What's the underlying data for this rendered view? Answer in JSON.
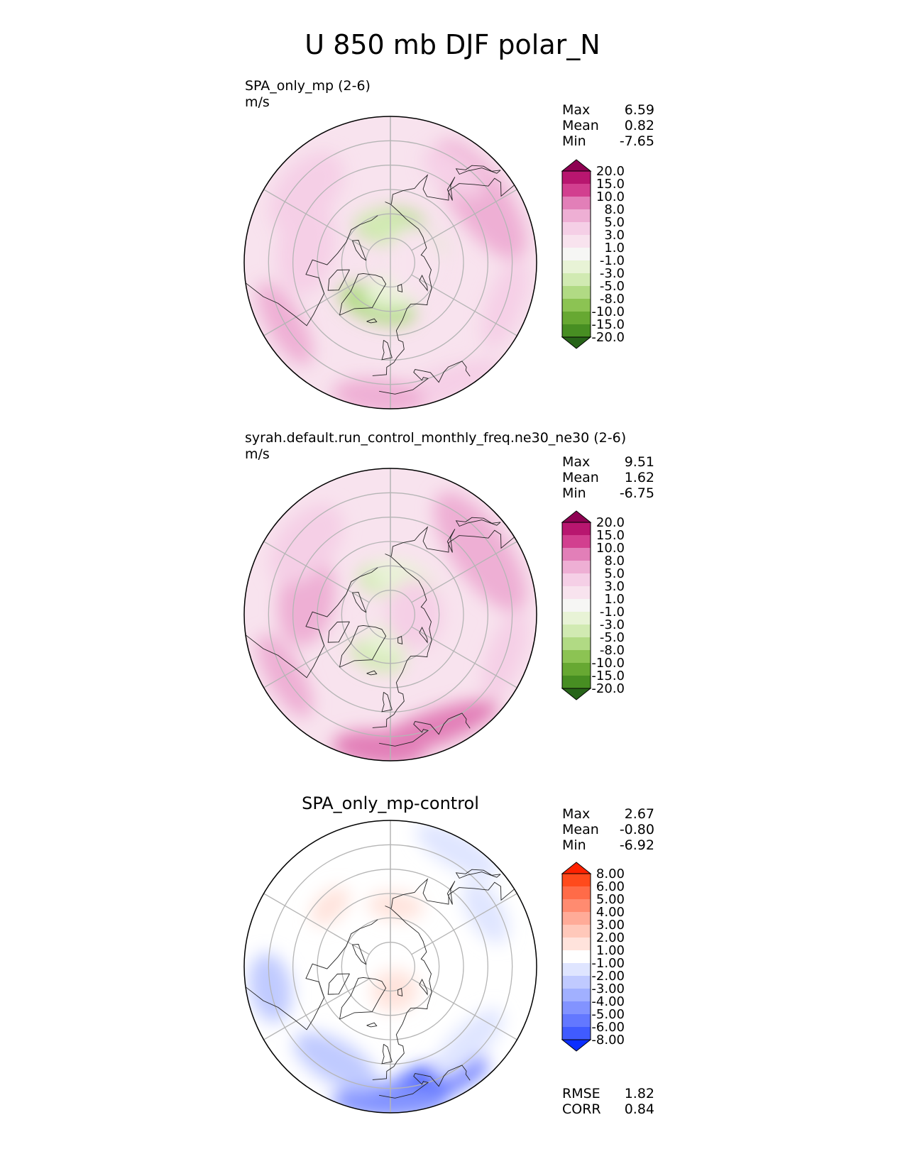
{
  "title": "U 850 mb DJF polar_N",
  "chart_data": [
    {
      "type": "heatmap",
      "title": "SPA_only_mp (2-6)",
      "units": "m/s",
      "stats": [
        [
          "Max",
          "6.59"
        ],
        [
          "Mean",
          "0.82"
        ],
        [
          "Min",
          "-7.65"
        ]
      ],
      "colorbar": {
        "labels": [
          "20.0",
          "15.0",
          "10.0",
          "8.0",
          "5.0",
          "3.0",
          "1.0",
          "-1.0",
          "-3.0",
          "-5.0",
          "-8.0",
          "-10.0",
          "-15.0",
          "-20.0"
        ],
        "colors": [
          "#8e0152",
          "#b8166f",
          "#d23f8f",
          "#e27fb8",
          "#eeafd4",
          "#f5cfe6",
          "#f8e3ee",
          "#f6f6f4",
          "#e8f3d6",
          "#d1eab2",
          "#b1da84",
          "#8cc353",
          "#67a832",
          "#478e22",
          "#276419"
        ]
      },
      "field": [
        {
          "lat": 75,
          "lon": 180,
          "value": -6,
          "sx": 0.15,
          "sy": 0.05
        },
        {
          "lat": 78,
          "lon": 158,
          "value": -4,
          "sx": 0.2,
          "sy": 0.05
        },
        {
          "lat": 72,
          "lon": -18,
          "value": -6,
          "sx": 0.17,
          "sy": 0.05
        },
        {
          "lat": 78,
          "lon": 5,
          "value": -3,
          "sx": 0.12,
          "sy": 0.05
        },
        {
          "lat": 80,
          "lon": 90,
          "value": 2,
          "sx": 0.15,
          "sy": 0.08
        },
        {
          "lat": 45,
          "lon": 125,
          "value": 5,
          "sx": 0.3,
          "sy": 0.08
        },
        {
          "lat": 45,
          "lon": 145,
          "value": 3,
          "sx": 0.15,
          "sy": 0.05
        },
        {
          "lat": 40,
          "lon": -60,
          "value": 6,
          "sx": 0.2,
          "sy": 0.05
        },
        {
          "lat": 35,
          "lon": 20,
          "value": 4,
          "sx": 0.3,
          "sy": 0.05
        },
        {
          "lat": 35,
          "lon": -5,
          "value": 6,
          "sx": 0.2,
          "sy": 0.05
        },
        {
          "lat": 55,
          "lon": -100,
          "value": 4,
          "sx": 0.2,
          "sy": 0.08
        },
        {
          "lat": 45,
          "lon": -130,
          "value": 3,
          "sx": 0.2,
          "sy": 0.08
        },
        {
          "lat": 40,
          "lon": 70,
          "value": 4,
          "sx": 0.2,
          "sy": 0.05
        }
      ],
      "base_value": 1.5
    },
    {
      "type": "heatmap",
      "title": "syrah.default.run_control_monthly_freq.ne30_ne30 (2-6)",
      "units": "m/s",
      "stats": [
        [
          "Max",
          "9.51"
        ],
        [
          "Mean",
          "1.62"
        ],
        [
          "Min",
          "-6.75"
        ]
      ],
      "colorbar": {
        "labels": [
          "20.0",
          "15.0",
          "10.0",
          "8.0",
          "5.0",
          "3.0",
          "1.0",
          "-1.0",
          "-3.0",
          "-5.0",
          "-8.0",
          "-10.0",
          "-15.0",
          "-20.0"
        ],
        "colors": [
          "#8e0152",
          "#b8166f",
          "#d23f8f",
          "#e27fb8",
          "#eeafd4",
          "#f5cfe6",
          "#f8e3ee",
          "#f6f6f4",
          "#e8f3d6",
          "#d1eab2",
          "#b1da84",
          "#8cc353",
          "#67a832",
          "#478e22",
          "#276419"
        ]
      },
      "field": [
        {
          "lat": 75,
          "lon": 180,
          "value": -5,
          "sx": 0.14,
          "sy": 0.05
        },
        {
          "lat": 75,
          "lon": 158,
          "value": -3,
          "sx": 0.15,
          "sy": 0.05
        },
        {
          "lat": 72,
          "lon": -18,
          "value": -4,
          "sx": 0.12,
          "sy": 0.04
        },
        {
          "lat": 80,
          "lon": 10,
          "value": -3,
          "sx": 0.12,
          "sy": 0.05
        },
        {
          "lat": 80,
          "lon": 90,
          "value": 3,
          "sx": 0.15,
          "sy": 0.08
        },
        {
          "lat": 40,
          "lon": 20,
          "value": 8,
          "sx": 0.3,
          "sy": 0.05
        },
        {
          "lat": 35,
          "lon": -5,
          "value": 9,
          "sx": 0.2,
          "sy": 0.05
        },
        {
          "lat": 45,
          "lon": 125,
          "value": 5,
          "sx": 0.3,
          "sy": 0.08
        },
        {
          "lat": 40,
          "lon": -60,
          "value": 6,
          "sx": 0.2,
          "sy": 0.05
        },
        {
          "lat": 55,
          "lon": -100,
          "value": 5,
          "sx": 0.2,
          "sy": 0.08
        },
        {
          "lat": 45,
          "lon": -130,
          "value": 4,
          "sx": 0.2,
          "sy": 0.08
        },
        {
          "lat": 40,
          "lon": 70,
          "value": 4,
          "sx": 0.2,
          "sy": 0.05
        }
      ],
      "base_value": 2.5
    },
    {
      "type": "heatmap",
      "title": "SPA_only_mp-control",
      "units": "",
      "stats": [
        [
          "Max",
          "2.67"
        ],
        [
          "Mean",
          "-0.80"
        ],
        [
          "Min",
          "-6.92"
        ]
      ],
      "metrics": [
        [
          "RMSE",
          "1.82"
        ],
        [
          "CORR",
          "0.84"
        ]
      ],
      "colorbar": {
        "labels": [
          "8.00",
          "6.00",
          "5.00",
          "4.00",
          "3.00",
          "2.00",
          "1.00",
          "-1.00",
          "-2.00",
          "-3.00",
          "-4.00",
          "-5.00",
          "-6.00",
          "-8.00"
        ],
        "colors": [
          "#ff2200",
          "#ff4a1c",
          "#ff6b48",
          "#ff8b70",
          "#ffab98",
          "#ffc8ba",
          "#ffe3dc",
          "#ffffff",
          "#dfe5ff",
          "#c0caff",
          "#a1b0ff",
          "#8293ff",
          "#6378ff",
          "#405bff",
          "#0b2eff"
        ]
      },
      "field": [
        {
          "lat": 40,
          "lon": 20,
          "value": -6.5,
          "sx": 0.25,
          "sy": 0.05
        },
        {
          "lat": 35,
          "lon": 0,
          "value": -5,
          "sx": 0.25,
          "sy": 0.05
        },
        {
          "lat": 45,
          "lon": -30,
          "value": -3,
          "sx": 0.2,
          "sy": 0.06
        },
        {
          "lat": 40,
          "lon": -80,
          "value": -3,
          "sx": 0.15,
          "sy": 0.06
        },
        {
          "lat": 45,
          "lon": 45,
          "value": -2,
          "sx": 0.2,
          "sy": 0.05
        },
        {
          "lat": 35,
          "lon": 150,
          "value": -1.8,
          "sx": 0.2,
          "sy": 0.05
        },
        {
          "lat": 45,
          "lon": 120,
          "value": -1.5,
          "sx": 0.15,
          "sy": 0.05
        },
        {
          "lat": 80,
          "lon": 10,
          "value": 1.8,
          "sx": 0.1,
          "sy": 0.06
        },
        {
          "lat": 65,
          "lon": 175,
          "value": 1.6,
          "sx": 0.12,
          "sy": 0.04
        },
        {
          "lat": 55,
          "lon": -135,
          "value": 1.7,
          "sx": 0.1,
          "sy": 0.04
        }
      ],
      "base_value": 0
    }
  ]
}
